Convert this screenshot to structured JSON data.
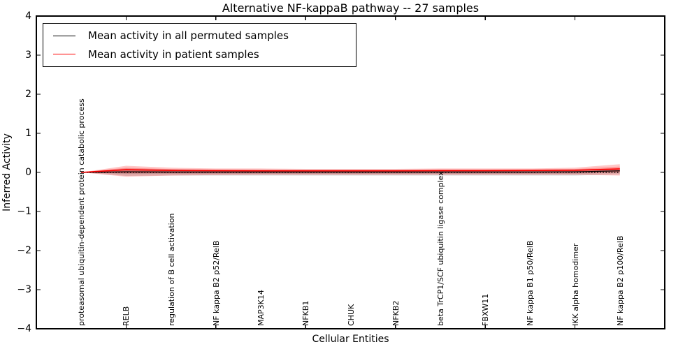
{
  "chart_data": {
    "type": "line",
    "title": "Alternative NF-kappaB pathway -- 27 samples",
    "xlabel": "Cellular Entities",
    "ylabel": "Inferred Activity",
    "ylim": [
      -4,
      4
    ],
    "xlim": [
      0,
      14
    ],
    "yticks": [
      4,
      3,
      2,
      1,
      0,
      -1,
      -2,
      -3,
      -4
    ],
    "xtick_positions": [
      2,
      4,
      6,
      8,
      10,
      12
    ],
    "grid": false,
    "legend_position": "upper left",
    "x": [
      1,
      2,
      3,
      4,
      5,
      6,
      7,
      8,
      9,
      10,
      11,
      12,
      13
    ],
    "categories": [
      "proteasomal ubiquitin-dependent protein catabolic process",
      "RELB",
      "regulation of B cell activation",
      "NF kappa B2 p52/RelB",
      "MAP3K14",
      "NFKB1",
      "CHUK",
      "NFKB2",
      "beta TrCP1/SCF ubiquitin ligase complex",
      "FBXW11",
      "NF kappa B1 p50/RelB",
      "IKK alpha homodimer",
      "NF kappa B2 p100/RelB"
    ],
    "baseline": {
      "value": 0,
      "style": "dotted",
      "color": "#000000"
    },
    "series": [
      {
        "name": "Mean activity in all permuted samples",
        "color": "#000000",
        "values": [
          0.0,
          0.015,
          0.01,
          0.01,
          0.01,
          0.01,
          0.01,
          0.01,
          0.01,
          0.01,
          0.01,
          0.015,
          0.04
        ],
        "band_upper": [
          0.0,
          0.1,
          0.08,
          0.07,
          0.07,
          0.07,
          0.07,
          0.07,
          0.07,
          0.07,
          0.07,
          0.08,
          0.1
        ],
        "band_lower": [
          0.0,
          -0.09,
          -0.08,
          -0.08,
          -0.08,
          -0.08,
          -0.08,
          -0.08,
          -0.08,
          -0.08,
          -0.08,
          -0.08,
          -0.05
        ],
        "band_color": "#000000",
        "band_opacity": 0.15
      },
      {
        "name": "Mean activity in patient samples",
        "color": "#ff0000",
        "values": [
          0.0,
          0.07,
          0.05,
          0.045,
          0.04,
          0.04,
          0.04,
          0.04,
          0.045,
          0.045,
          0.05,
          0.055,
          0.09
        ],
        "band_upper": [
          0.0,
          0.17,
          0.12,
          0.1,
          0.1,
          0.09,
          0.09,
          0.09,
          0.1,
          0.1,
          0.1,
          0.12,
          0.21
        ],
        "band_lower": [
          0.0,
          -0.11,
          -0.08,
          -0.07,
          -0.06,
          -0.06,
          -0.06,
          -0.06,
          -0.06,
          -0.06,
          -0.06,
          -0.06,
          -0.08
        ],
        "band_color": "#ff0000",
        "band_opacity": 0.22
      }
    ]
  }
}
